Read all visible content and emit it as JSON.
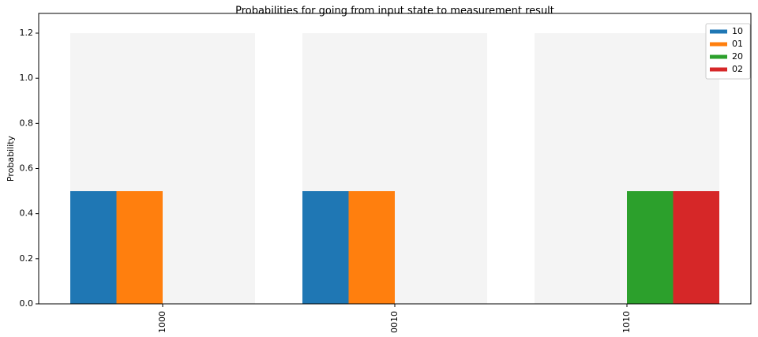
{
  "chart_data": {
    "type": "bar",
    "title": "Probabilities for going from input state to measurement result",
    "y_label": "Probability",
    "categories": [
      "1000",
      "0010",
      "1010"
    ],
    "series": [
      {
        "name": "10",
        "color": "#1f77b4",
        "values": [
          0.5,
          0.5,
          0
        ]
      },
      {
        "name": "01",
        "color": "#ff7f0e",
        "values": [
          0.5,
          0.5,
          0
        ]
      },
      {
        "name": "20",
        "color": "#2ca02c",
        "values": [
          0,
          0,
          0.5
        ]
      },
      {
        "name": "02",
        "color": "#d62728",
        "values": [
          0,
          0,
          0.5
        ]
      }
    ],
    "ylim": [
      0,
      1.2875
    ],
    "yticks": [
      {
        "value": 0,
        "label": "0.0"
      },
      {
        "value": 0.2,
        "label": "0.2"
      },
      {
        "value": 0.4,
        "label": "0.4"
      },
      {
        "value": 0.6,
        "label": "0.6"
      },
      {
        "value": 0.8,
        "label": "0.8"
      },
      {
        "value": 1,
        "label": "1.0"
      },
      {
        "value": 1.2,
        "label": "1.2"
      }
    ],
    "legend": "upper right"
  }
}
